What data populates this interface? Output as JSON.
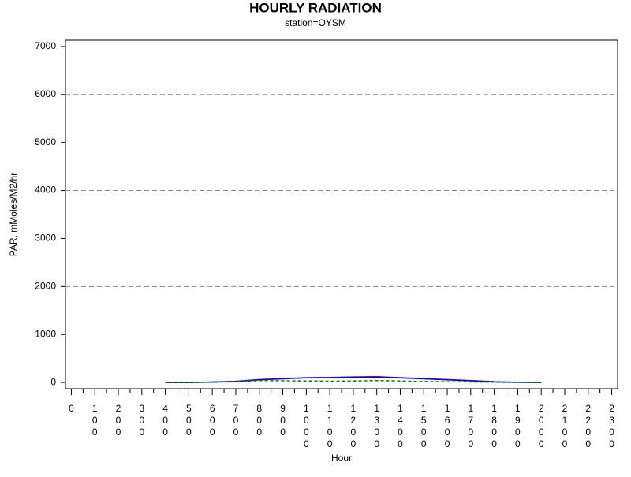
{
  "chart_data": {
    "type": "line",
    "title": "HOURLY RADIATION",
    "subtitle": "station=OYSM",
    "x_label": "Hour",
    "y_label": "PAR, mMoles/M2/hr",
    "x": [
      0,
      100,
      200,
      300,
      400,
      500,
      600,
      700,
      800,
      900,
      1000,
      1100,
      1200,
      1300,
      1400,
      1500,
      1600,
      1700,
      1800,
      1900,
      2000,
      2100,
      2200,
      2300
    ],
    "series": [
      {
        "color": "#ff0000",
        "dash": false,
        "values": [
          null,
          null,
          null,
          null,
          0,
          0,
          10,
          25,
          60,
          80,
          100,
          105,
          115,
          120,
          100,
          80,
          60,
          40,
          15,
          5,
          0,
          null,
          null,
          null
        ]
      },
      {
        "color": "#0000ff",
        "dash": false,
        "values": [
          null,
          null,
          null,
          null,
          0,
          0,
          8,
          20,
          55,
          75,
          95,
          100,
          110,
          115,
          95,
          75,
          55,
          35,
          12,
          3,
          0,
          null,
          null,
          null
        ]
      },
      {
        "color": "#008000",
        "dash": true,
        "values": [
          null,
          null,
          null,
          null,
          0,
          0,
          5,
          15,
          40,
          35,
          30,
          25,
          30,
          40,
          30,
          20,
          15,
          10,
          5,
          0,
          0,
          null,
          null,
          null
        ]
      }
    ],
    "xlim": [
      -25,
      2325
    ],
    "ylim": [
      -130,
      7130
    ],
    "xticks": [
      0,
      100,
      200,
      300,
      400,
      500,
      600,
      700,
      800,
      900,
      1000,
      1100,
      1200,
      1300,
      1400,
      1500,
      1600,
      1700,
      1800,
      1900,
      2000,
      2100,
      2200,
      2300
    ],
    "yticks": [
      0,
      1000,
      2000,
      3000,
      4000,
      5000,
      6000,
      7000
    ],
    "grid_values": [
      2000,
      4000,
      6000
    ]
  }
}
